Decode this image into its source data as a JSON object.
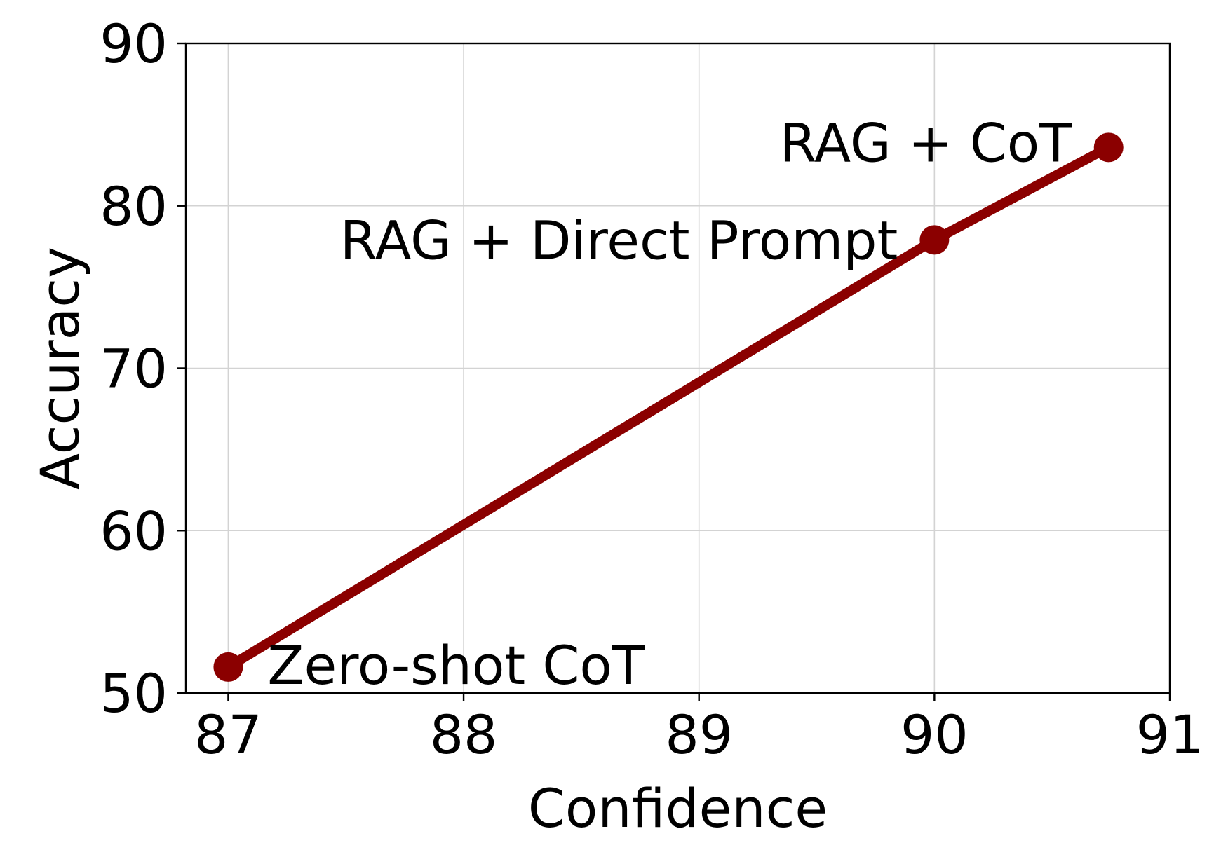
{
  "chart_data": {
    "type": "line",
    "title": "",
    "xlabel": "Confidence",
    "ylabel": "Accuracy",
    "xlim": [
      86.82,
      91.0
    ],
    "ylim": [
      50,
      90
    ],
    "xticks": [
      87,
      88,
      89,
      90,
      91
    ],
    "yticks": [
      50,
      60,
      70,
      80,
      90
    ],
    "grid": true,
    "series": [
      {
        "color": "#8b0000",
        "points": [
          {
            "x": 87.0,
            "y": 51.6,
            "label": "Zero-shot CoT"
          },
          {
            "x": 90.0,
            "y": 77.9,
            "label": "RAG + Direct Prompt"
          },
          {
            "x": 90.74,
            "y": 83.6,
            "label": "RAG + CoT"
          }
        ]
      }
    ]
  }
}
